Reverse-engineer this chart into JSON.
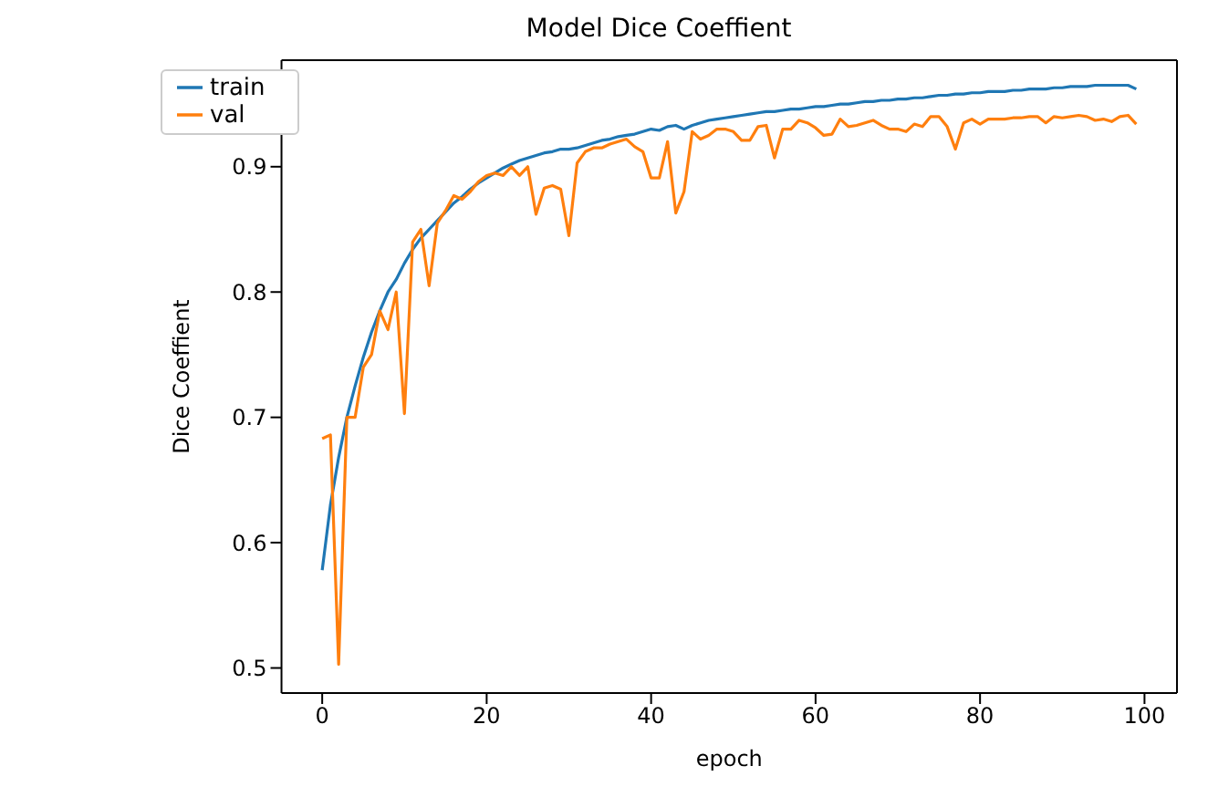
{
  "chart_data": {
    "type": "line",
    "title": "Model Dice Coeffient",
    "xlabel": "epoch",
    "ylabel": "Dice Coeffient",
    "x": [
      0,
      1,
      2,
      3,
      4,
      5,
      6,
      7,
      8,
      9,
      10,
      11,
      12,
      13,
      14,
      15,
      16,
      17,
      18,
      19,
      20,
      21,
      22,
      23,
      24,
      25,
      26,
      27,
      28,
      29,
      30,
      31,
      32,
      33,
      34,
      35,
      36,
      37,
      38,
      39,
      40,
      41,
      42,
      43,
      44,
      45,
      46,
      47,
      48,
      49,
      50,
      51,
      52,
      53,
      54,
      55,
      56,
      57,
      58,
      59,
      60,
      61,
      62,
      63,
      64,
      65,
      66,
      67,
      68,
      69,
      70,
      71,
      72,
      73,
      74,
      75,
      76,
      77,
      78,
      79,
      80,
      81,
      82,
      83,
      84,
      85,
      86,
      87,
      88,
      89,
      90,
      91,
      92,
      93,
      94,
      95,
      96,
      97,
      98,
      99
    ],
    "series": [
      {
        "name": "train",
        "color": "#1f77b4",
        "values": [
          0.578,
          0.63,
          0.668,
          0.7,
          0.725,
          0.748,
          0.768,
          0.785,
          0.8,
          0.81,
          0.823,
          0.834,
          0.843,
          0.85,
          0.857,
          0.864,
          0.871,
          0.876,
          0.882,
          0.887,
          0.891,
          0.895,
          0.899,
          0.902,
          0.905,
          0.907,
          0.909,
          0.911,
          0.912,
          0.914,
          0.914,
          0.915,
          0.917,
          0.919,
          0.921,
          0.922,
          0.924,
          0.925,
          0.926,
          0.928,
          0.93,
          0.929,
          0.932,
          0.933,
          0.93,
          0.933,
          0.935,
          0.937,
          0.938,
          0.939,
          0.94,
          0.941,
          0.942,
          0.943,
          0.944,
          0.944,
          0.945,
          0.946,
          0.946,
          0.947,
          0.948,
          0.948,
          0.949,
          0.95,
          0.95,
          0.951,
          0.952,
          0.952,
          0.953,
          0.953,
          0.954,
          0.954,
          0.955,
          0.955,
          0.956,
          0.957,
          0.957,
          0.958,
          0.958,
          0.959,
          0.959,
          0.96,
          0.96,
          0.96,
          0.961,
          0.961,
          0.962,
          0.962,
          0.962,
          0.963,
          0.963,
          0.964,
          0.964,
          0.964,
          0.965,
          0.965,
          0.965,
          0.965,
          0.965,
          0.962
        ]
      },
      {
        "name": "val",
        "color": "#ff7f0e",
        "values": [
          0.683,
          0.686,
          0.503,
          0.7,
          0.7,
          0.74,
          0.75,
          0.785,
          0.77,
          0.8,
          0.703,
          0.84,
          0.85,
          0.805,
          0.855,
          0.865,
          0.877,
          0.874,
          0.88,
          0.888,
          0.893,
          0.895,
          0.893,
          0.9,
          0.893,
          0.9,
          0.862,
          0.883,
          0.885,
          0.882,
          0.845,
          0.903,
          0.912,
          0.915,
          0.915,
          0.918,
          0.92,
          0.922,
          0.916,
          0.912,
          0.891,
          0.891,
          0.92,
          0.863,
          0.88,
          0.928,
          0.922,
          0.925,
          0.93,
          0.93,
          0.928,
          0.921,
          0.921,
          0.932,
          0.933,
          0.907,
          0.93,
          0.93,
          0.937,
          0.935,
          0.931,
          0.925,
          0.926,
          0.938,
          0.932,
          0.933,
          0.935,
          0.937,
          0.933,
          0.93,
          0.93,
          0.928,
          0.934,
          0.932,
          0.94,
          0.94,
          0.932,
          0.914,
          0.935,
          0.938,
          0.934,
          0.938,
          0.938,
          0.938,
          0.939,
          0.939,
          0.94,
          0.94,
          0.935,
          0.94,
          0.939,
          0.94,
          0.941,
          0.94,
          0.937,
          0.938,
          0.936,
          0.94,
          0.941,
          0.934
        ]
      }
    ],
    "xlim": [
      -4.95,
      103.95
    ],
    "xticks": [
      0,
      20,
      40,
      60,
      80,
      100
    ],
    "ylim": [
      0.48,
      0.985
    ],
    "yticks": [
      0.5,
      0.6,
      0.7,
      0.8,
      0.9
    ],
    "grid": false,
    "legend": "top left",
    "marker": "none",
    "line_style": "solid"
  }
}
